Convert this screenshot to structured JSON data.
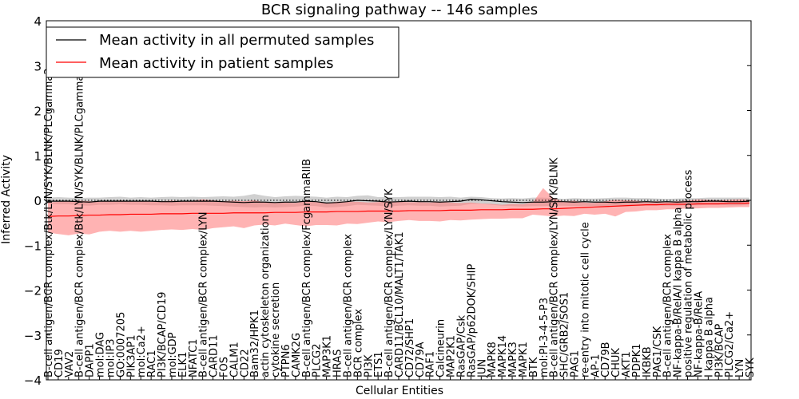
{
  "chart_data": {
    "type": "line",
    "title": "BCR signaling pathway -- 146 samples",
    "xlabel": "Cellular Entities",
    "ylabel": "Inferred Activity",
    "ylim": [
      -4,
      4
    ],
    "yticks": [
      -4,
      -3,
      -2,
      -1,
      0,
      1,
      2,
      3,
      4
    ],
    "grid": false,
    "legend_position": "top-left",
    "zero_line": "dotted",
    "categories": [
      "B-cell antigen/BCR complex/Btk/LYN/SYK/BLNK/PLCgamma2",
      "CD19",
      "VAV2",
      "B-cell antigen/BCR complex/Btk/LYN/SYK/BLNK/PLCgamma2",
      "DAPP1",
      "mol:DAG",
      "mol:IP3",
      "GO:0007205",
      "PIK3AP1",
      "mol:Ca2+",
      "RAC1",
      "PI3K/BCAP/CD19",
      "mol:GDP",
      "ELK1",
      "NFATC1",
      "B-cell antigen/BCR complex/LYN",
      "CARD11",
      "FOS",
      "CALM1",
      "CD22",
      "Bam32/HPK1",
      "actin cytoskeleton organization",
      "cytokine secretion",
      "PTPN6",
      "CAMK2G",
      "B-cell antigen/BCR complex/FcgammaRIIB",
      "PLCG2",
      "MAP3K1",
      "HRAS",
      "B-cell antigen/BCR complex",
      "BCR complex",
      "PI3K",
      "ETS1",
      "B-cell antigen/BCR complex/LYN/SYK",
      "CARD11/BCL10/MALT1/TAK1",
      "CD72/SHP1",
      "CD79A",
      "RAF1",
      "Calcineurin",
      "MAP2K1",
      "RasGAP/Csk",
      "RasGAP/p62DOK/SHIP",
      "JUN",
      "MAPK8",
      "MAPK14",
      "MAPK3",
      "MAPK1",
      "BTK",
      "mol:PI-3-4-5-P3",
      "B-cell antigen/BCR complex/LYN/SYK/BLNK",
      "SHC/GRB2/SOS1",
      "PAG1",
      "re-entry into mitotic cell cycle",
      "AP-1",
      "CD79B",
      "CHUK",
      "AKT1",
      "PDPK1",
      "IKBKB",
      "PAG1/CSK",
      "B-cell antigen/BCR complex",
      "NF-kappa-B/RelA/I kappa B alpha",
      "positive regulation of metabolic process",
      "NF-kappa-B/RelA",
      "I kappa B alpha",
      "PI3K/BCAP",
      "PLCG2/Ca2+",
      "LYN",
      "SYK"
    ],
    "series": [
      {
        "name": "Mean activity in all permuted samples",
        "color": "#000000",
        "values": [
          -0.02,
          -0.02,
          -0.02,
          -0.03,
          -0.04,
          -0.02,
          -0.02,
          -0.02,
          -0.02,
          -0.02,
          -0.02,
          -0.03,
          -0.03,
          -0.02,
          -0.02,
          -0.02,
          -0.02,
          -0.03,
          -0.04,
          -0.05,
          -0.04,
          -0.04,
          -0.05,
          -0.04,
          -0.04,
          -0.02,
          -0.03,
          -0.06,
          -0.05,
          -0.03,
          0.0,
          -0.01,
          -0.02,
          -0.04,
          -0.03,
          -0.02,
          -0.03,
          -0.03,
          -0.04,
          -0.03,
          -0.02,
          0.02,
          0.01,
          -0.01,
          -0.03,
          -0.04,
          -0.05,
          -0.04,
          -0.04,
          -0.03,
          -0.03,
          -0.04,
          -0.03,
          -0.04,
          -0.04,
          -0.05,
          -0.04,
          -0.04,
          -0.03,
          -0.04,
          -0.03,
          -0.04,
          -0.03,
          -0.03,
          -0.02,
          -0.02,
          -0.03,
          -0.03,
          -0.02
        ]
      },
      {
        "name": "Mean activity in patient samples",
        "color": "#ff0000",
        "values": [
          -0.36,
          -0.35,
          -0.35,
          -0.34,
          -0.33,
          -0.33,
          -0.32,
          -0.32,
          -0.31,
          -0.31,
          -0.31,
          -0.3,
          -0.3,
          -0.3,
          -0.29,
          -0.29,
          -0.29,
          -0.29,
          -0.28,
          -0.28,
          -0.28,
          -0.28,
          -0.27,
          -0.27,
          -0.27,
          -0.26,
          -0.26,
          -0.26,
          -0.25,
          -0.25,
          -0.25,
          -0.24,
          -0.24,
          -0.24,
          -0.24,
          -0.23,
          -0.23,
          -0.23,
          -0.23,
          -0.22,
          -0.22,
          -0.22,
          -0.21,
          -0.21,
          -0.21,
          -0.2,
          -0.2,
          -0.2,
          -0.19,
          -0.19,
          -0.18,
          -0.17,
          -0.16,
          -0.15,
          -0.14,
          -0.13,
          -0.12,
          -0.11,
          -0.1,
          -0.1,
          -0.09,
          -0.09,
          -0.09,
          -0.08,
          -0.08,
          -0.08,
          -0.07,
          -0.07,
          -0.06
        ]
      }
    ],
    "bands": [
      {
        "name": "permuted samples spread",
        "color": "#aaaaaa",
        "upper": [
          0.06,
          0.07,
          0.06,
          0.05,
          0.06,
          0.06,
          0.07,
          0.08,
          0.06,
          0.07,
          0.06,
          0.07,
          0.08,
          0.07,
          0.08,
          0.07,
          0.08,
          0.09,
          0.08,
          0.1,
          0.14,
          0.1,
          0.07,
          0.09,
          0.1,
          0.09,
          0.08,
          0.06,
          0.08,
          0.07,
          0.1,
          0.11,
          0.07,
          0.07,
          0.07,
          0.08,
          0.08,
          0.08,
          0.07,
          0.08,
          0.06,
          0.08,
          0.07,
          0.05,
          0.04,
          0.05,
          0.04,
          0.06,
          0.06,
          0.05,
          0.03,
          0.05,
          0.04,
          0.04,
          0.05,
          0.06,
          0.06,
          0.05,
          0.05,
          0.04,
          0.03,
          0.04,
          0.05,
          0.05,
          0.06,
          0.06,
          0.06,
          0.06,
          0.06
        ],
        "lower": [
          -0.08,
          -0.09,
          -0.09,
          -0.11,
          -0.12,
          -0.1,
          -0.1,
          -0.09,
          -0.1,
          -0.1,
          -0.11,
          -0.11,
          -0.12,
          -0.11,
          -0.11,
          -0.11,
          -0.12,
          -0.13,
          -0.14,
          -0.15,
          -0.16,
          -0.15,
          -0.16,
          -0.15,
          -0.14,
          -0.12,
          -0.13,
          -0.16,
          -0.15,
          -0.13,
          -0.1,
          -0.11,
          -0.12,
          -0.14,
          -0.12,
          -0.11,
          -0.12,
          -0.12,
          -0.14,
          -0.13,
          -0.12,
          -0.08,
          -0.08,
          -0.1,
          -0.12,
          -0.13,
          -0.14,
          -0.13,
          -0.13,
          -0.12,
          -0.12,
          -0.13,
          -0.12,
          -0.13,
          -0.13,
          -0.14,
          -0.13,
          -0.13,
          -0.12,
          -0.12,
          -0.12,
          -0.13,
          -0.11,
          -0.11,
          -0.1,
          -0.1,
          -0.11,
          -0.11,
          -0.1
        ]
      },
      {
        "name": "patient samples spread",
        "color": "#ff8080",
        "upper": [
          -0.05,
          -0.03,
          -0.02,
          -0.01,
          -0.02,
          -0.03,
          -0.02,
          0.0,
          -0.02,
          -0.02,
          -0.03,
          -0.02,
          -0.01,
          -0.02,
          -0.01,
          0.02,
          0.0,
          -0.02,
          -0.01,
          -0.02,
          0.0,
          -0.04,
          -0.06,
          -0.05,
          -0.06,
          -0.02,
          -0.04,
          -0.06,
          -0.03,
          -0.03,
          -0.03,
          -0.05,
          -0.04,
          -0.02,
          -0.03,
          -0.04,
          -0.04,
          -0.05,
          -0.04,
          -0.05,
          -0.06,
          -0.05,
          -0.07,
          -0.08,
          -0.1,
          -0.08,
          -0.09,
          -0.05,
          0.27,
          0.05,
          -0.03,
          -0.01,
          -0.05,
          -0.06,
          -0.02,
          0.01,
          0.0,
          -0.01,
          -0.03,
          -0.02,
          -0.03,
          -0.02,
          -0.01,
          0.02,
          0.01,
          0.0,
          0.01,
          0.02,
          0.01
        ],
        "lower": [
          -0.72,
          -0.75,
          -0.78,
          -0.74,
          -0.76,
          -0.7,
          -0.68,
          -0.7,
          -0.68,
          -0.7,
          -0.68,
          -0.66,
          -0.65,
          -0.66,
          -0.64,
          -0.66,
          -0.62,
          -0.6,
          -0.58,
          -0.62,
          -0.56,
          -0.54,
          -0.56,
          -0.52,
          -0.55,
          -0.58,
          -0.55,
          -0.55,
          -0.56,
          -0.52,
          -0.53,
          -0.5,
          -0.47,
          -0.49,
          -0.46,
          -0.44,
          -0.46,
          -0.46,
          -0.47,
          -0.44,
          -0.45,
          -0.43,
          -0.42,
          -0.41,
          -0.41,
          -0.4,
          -0.4,
          -0.32,
          -0.34,
          -0.36,
          -0.34,
          -0.35,
          -0.3,
          -0.32,
          -0.3,
          -0.36,
          -0.26,
          -0.25,
          -0.22,
          -0.22,
          -0.2,
          -0.2,
          -0.18,
          -0.18,
          -0.17,
          -0.17,
          -0.16,
          -0.15,
          -0.15
        ]
      }
    ]
  }
}
